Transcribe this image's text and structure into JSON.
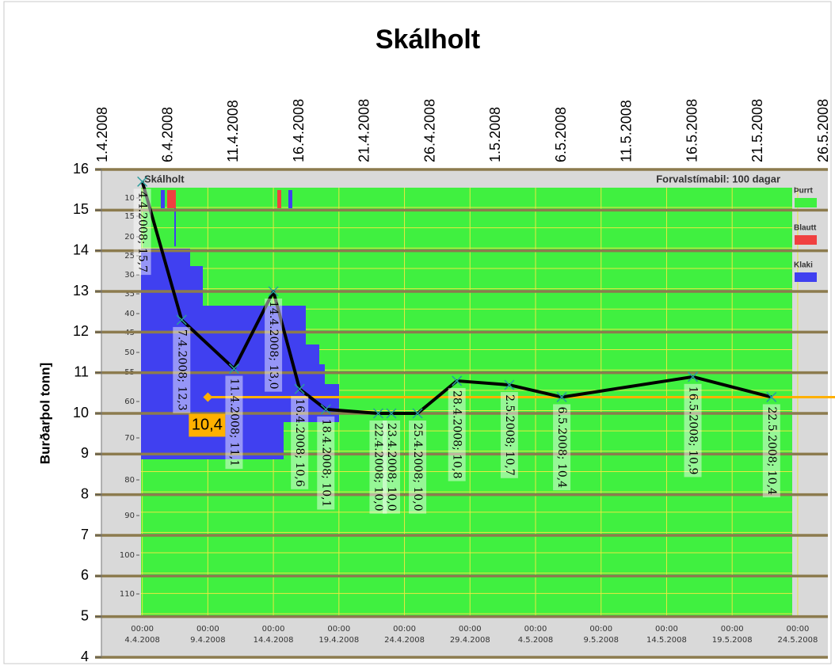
{
  "chart_data": {
    "type": "line",
    "title": "Skálholt",
    "y_label": "Burðarþol tonn]",
    "xlim": [
      "1.4.2008",
      "26.5.2008"
    ],
    "xticks": [
      "1.4.2008",
      "6.4.2008",
      "11.4.2008",
      "16.4.2008",
      "21.4.2008",
      "26.4.2008",
      "1.5.2008",
      "6.5.2008",
      "11.5.2008",
      "16.5.2008",
      "21.5.2008",
      "26.5.2008"
    ],
    "ylim": [
      4,
      16
    ],
    "yticks": [
      4,
      5,
      6,
      7,
      8,
      9,
      10,
      11,
      12,
      13,
      14,
      15,
      16
    ],
    "grid": true,
    "grid_color": "#8c7b4e",
    "series": [
      {
        "color": "#000000",
        "marker_color": "#2a9d9d",
        "x": [
          "4.4.2008",
          "7.4.2008",
          "11.4.2008",
          "14.4.2008",
          "16.4.2008",
          "18.4.2008",
          "22.4.2008",
          "23.4.2008",
          "25.4.2008",
          "28.4.2008",
          "2.5.2008",
          "6.5.2008",
          "16.5.2008",
          "22.5.2008"
        ],
        "values": [
          15.7,
          12.3,
          11.1,
          13.0,
          10.6,
          10.1,
          10.0,
          10.0,
          10.0,
          10.8,
          10.7,
          10.4,
          10.9,
          10.4
        ],
        "value_labels": [
          "4.4.2008; 15,7",
          "7.4.2008; 12,3",
          "11.4.2008; 11,1",
          "14.4.2008; 13,0",
          "16.4.2008; 10,6",
          "18.4.2008; 10,1",
          "22.4.2008; 10,0",
          "23.4.2008; 10,0",
          "25.4.2008; 10,0",
          "28.4.2008; 10,8",
          "2.5.2008; 10,7",
          "6.5.2008; 10,4",
          "16.5.2008; 10,9",
          "22.5.2008; 10,4"
        ]
      }
    ],
    "reference_line": {
      "value": 10.4,
      "label": "10,4",
      "start": "9.4.2008",
      "color": "#ffb000"
    }
  },
  "inner_panel": {
    "title": "Skálholt",
    "note": "Forvalstímabil: 100 dagar",
    "depth_ticks": [
      10,
      15,
      20,
      25,
      30,
      35,
      40,
      45,
      50,
      55,
      60,
      70,
      80,
      90,
      100,
      110
    ],
    "time_ticks": [
      {
        "time": "00:00",
        "date": "4.4.2008"
      },
      {
        "time": "00:00",
        "date": "9.4.2008"
      },
      {
        "time": "00:00",
        "date": "14.4.2008"
      },
      {
        "time": "00:00",
        "date": "19.4.2008"
      },
      {
        "time": "00:00",
        "date": "24.4.2008"
      },
      {
        "time": "00:00",
        "date": "29.4.2008"
      },
      {
        "time": "00:00",
        "date": "4.5.2008"
      },
      {
        "time": "00:00",
        "date": "9.5.2008"
      },
      {
        "time": "00:00",
        "date": "14.5.2008"
      },
      {
        "time": "00:00",
        "date": "19.5.2008"
      },
      {
        "time": "00:00",
        "date": "24.5.2008"
      }
    ],
    "legend": [
      {
        "name": "Þurrt",
        "color": "#40f040"
      },
      {
        "name": "Blautt",
        "color": "#f04040"
      },
      {
        "name": "Klaki",
        "color": "#4040f0"
      }
    ]
  }
}
